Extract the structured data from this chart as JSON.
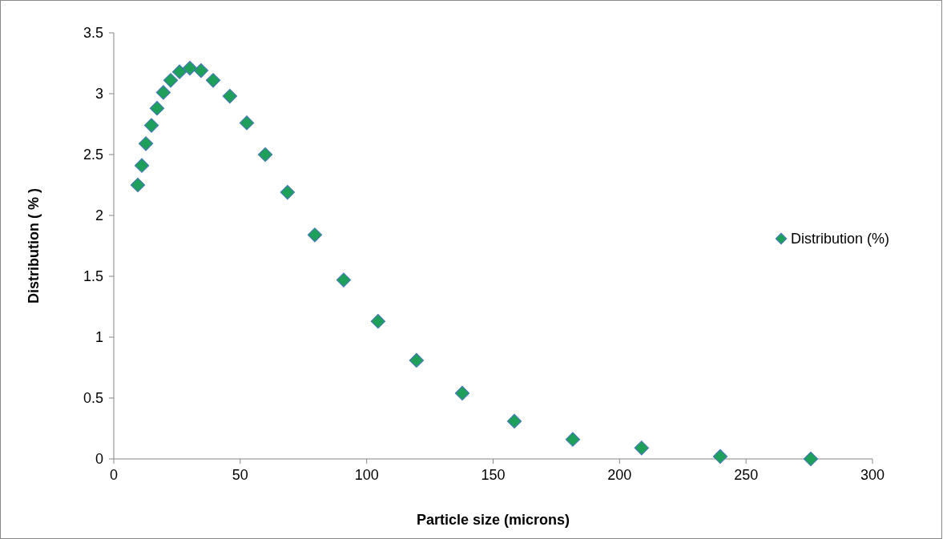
{
  "chart_data": {
    "type": "scatter",
    "xlabel": "Particle size (microns)",
    "ylabel": "Distribution ( % )",
    "xlim": [
      0,
      300
    ],
    "xticks": [
      0,
      50,
      100,
      150,
      200,
      250,
      300
    ],
    "ylim": [
      0,
      3.5
    ],
    "yticks": [
      0,
      0.5,
      1,
      1.5,
      2,
      2.5,
      3,
      3.5
    ],
    "grid": false,
    "legend": "right",
    "marker": "diamond",
    "series": [
      {
        "name": "Distribution (%)",
        "color": "#1fa05a",
        "x": [
          9.5,
          11.1,
          12.7,
          14.9,
          17.1,
          19.6,
          22.5,
          26.0,
          30.1,
          34.5,
          39.3,
          45.9,
          52.6,
          59.9,
          68.7,
          79.5,
          90.9,
          104.5,
          119.7,
          137.8,
          158.4,
          181.5,
          208.7,
          239.8,
          275.6
        ],
        "values": [
          2.25,
          2.41,
          2.59,
          2.74,
          2.88,
          3.01,
          3.11,
          3.18,
          3.21,
          3.19,
          3.11,
          2.98,
          2.76,
          2.5,
          2.19,
          1.84,
          1.47,
          1.13,
          0.81,
          0.54,
          0.31,
          0.16,
          0.09,
          0.02,
          0.0
        ]
      }
    ]
  }
}
